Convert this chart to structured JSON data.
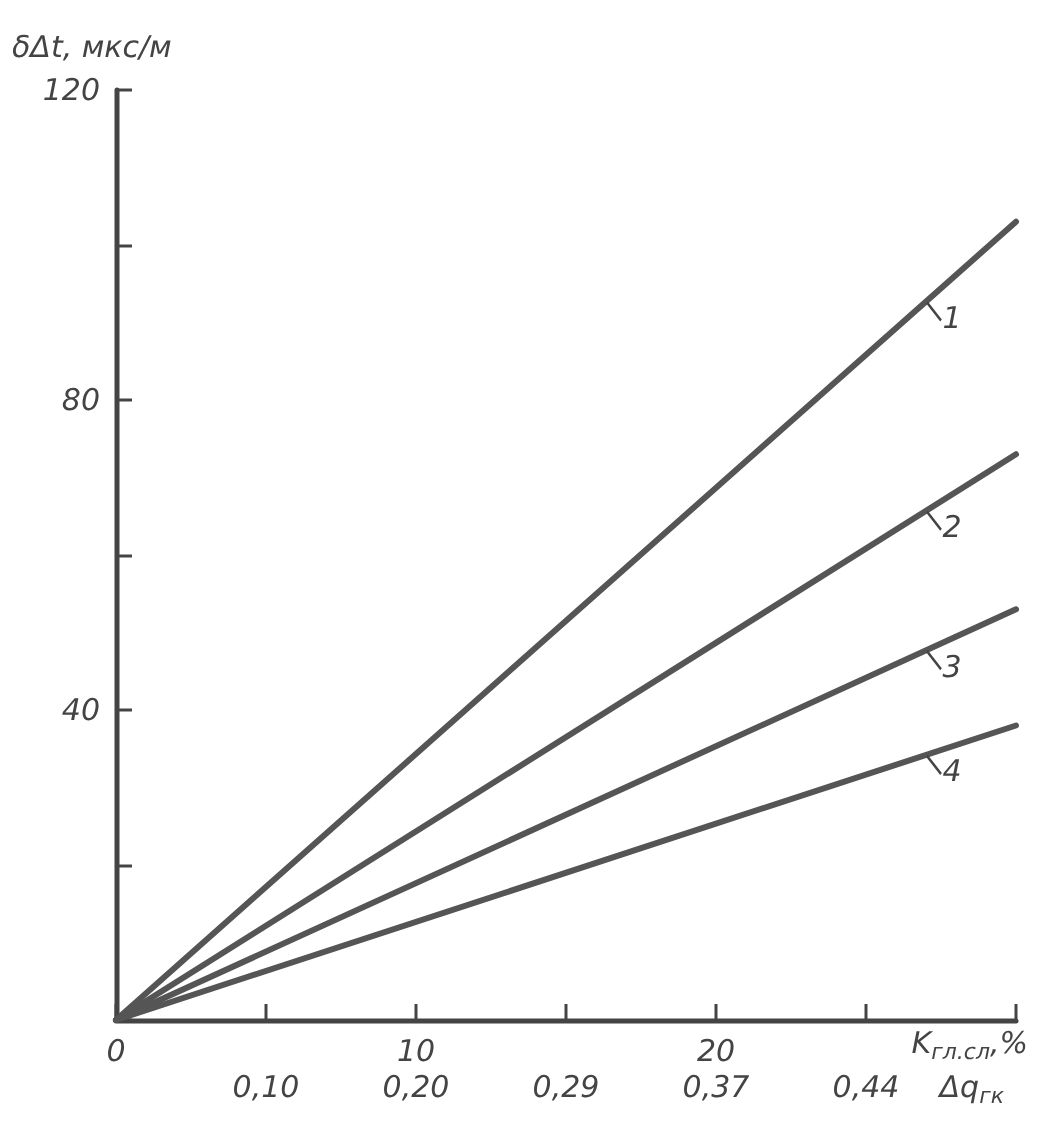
{
  "chart_data": {
    "type": "line",
    "ylabel": "δΔt, мкс/м",
    "xlabel": "K$_{гл.сл}$,%",
    "x": [
      0,
      30
    ],
    "series": [
      {
        "name": "1",
        "color": "#555555",
        "values": [
          0,
          103
        ]
      },
      {
        "name": "2",
        "color": "#555555",
        "values": [
          0,
          73
        ]
      },
      {
        "name": "3",
        "color": "#555555",
        "values": [
          0,
          53
        ]
      },
      {
        "name": "4",
        "color": "#555555",
        "values": [
          0,
          38
        ]
      }
    ],
    "annotations": [
      "0,10",
      "0,20",
      "0,29",
      "0,37",
      "0,44",
      "Δq$_{гк}$"
    ],
    "xlim": [
      0,
      30
    ],
    "xticks": [
      0,
      {
        "value": 5,
        "label": null
      },
      10,
      {
        "value": 15,
        "label": null
      },
      20,
      {
        "value": 25,
        "label": null
      },
      {
        "value": 30,
        "label": null
      }
    ],
    "ylim": [
      0,
      120
    ],
    "yticks": [
      {
        "value": 0,
        "label": null
      },
      {
        "value": 20,
        "label": null
      },
      40,
      {
        "value": 60,
        "label": null
      },
      80,
      {
        "value": 100,
        "label": null
      },
      120
    ],
    "grid": false,
    "marker": "none",
    "line_style": "solid"
  }
}
